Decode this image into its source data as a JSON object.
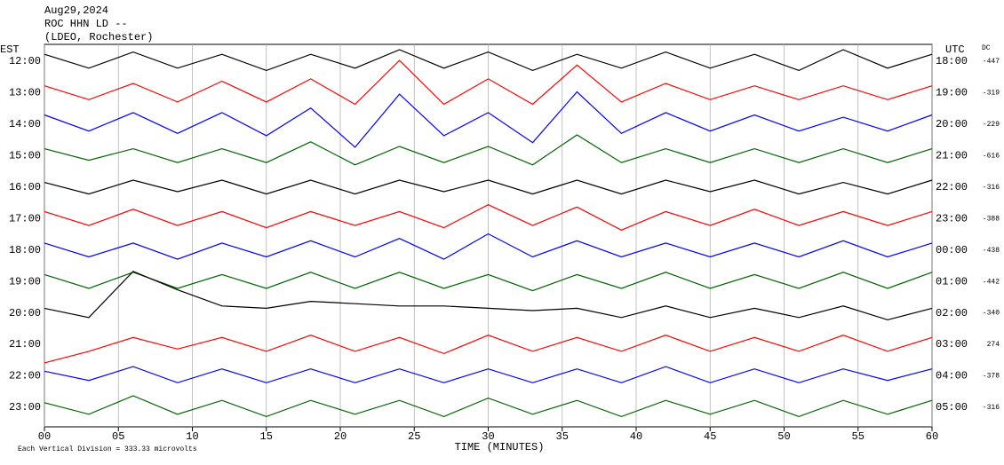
{
  "chart_data": {
    "type": "helicorder",
    "title_lines": [
      "Aug29,2024",
      "ROC HHN LD --",
      "(LDEO, Rochester)"
    ],
    "left_axis_label": "EST",
    "right_axis_label": "UTC",
    "dc_label": "DC",
    "x_label": "TIME (MINUTES)",
    "footnote": "Each Vertical Division = 333.33 microvolts",
    "xlim": [
      0,
      60
    ],
    "xticks": [
      {
        "value": 0,
        "label": "00"
      },
      {
        "value": 5,
        "label": "05"
      },
      10,
      15,
      20,
      25,
      30,
      35,
      40,
      45,
      50,
      55,
      60
    ],
    "grid": true,
    "x": [
      0,
      3,
      6,
      9,
      12,
      15,
      18,
      21,
      24,
      27,
      30,
      33,
      36,
      39,
      42,
      45,
      48,
      51,
      54,
      57,
      60
    ],
    "series": [
      {
        "est": "12:00",
        "utc": "18:00",
        "dc": -447,
        "color": "#000000",
        "values": [
          0.3,
          -0.3,
          0.4,
          -0.3,
          0.3,
          -0.4,
          0.3,
          -0.3,
          0.5,
          -0.3,
          0.4,
          -0.4,
          0.3,
          -0.3,
          0.4,
          -0.3,
          0.3,
          -0.4,
          0.5,
          -0.3,
          0.3
        ]
      },
      {
        "est": "13:00",
        "utc": "19:00",
        "dc": -319,
        "color": "#ff0000",
        "values": [
          0.3,
          -0.3,
          0.4,
          -0.4,
          0.5,
          -0.4,
          0.6,
          -0.5,
          1.4,
          -0.5,
          0.6,
          -0.5,
          1.2,
          -0.4,
          0.4,
          -0.3,
          0.3,
          -0.3,
          0.3,
          -0.3,
          0.3
        ]
      },
      {
        "est": "14:00",
        "utc": "20:00",
        "dc": -229,
        "color": "#0000ff",
        "values": [
          0.4,
          -0.3,
          0.5,
          -0.4,
          0.5,
          -0.5,
          0.7,
          -1.0,
          1.3,
          -0.5,
          0.5,
          -0.8,
          1.4,
          -0.4,
          0.5,
          -0.3,
          0.4,
          -0.3,
          0.3,
          -0.3,
          0.4
        ]
      },
      {
        "est": "15:00",
        "utc": "21:00",
        "dc": -616,
        "color": "#006400",
        "values": [
          0.3,
          -0.2,
          0.3,
          -0.3,
          0.3,
          -0.3,
          0.6,
          -0.4,
          0.4,
          -0.3,
          0.4,
          -0.4,
          0.9,
          -0.3,
          0.3,
          -0.3,
          0.3,
          -0.3,
          0.3,
          -0.3,
          0.3
        ]
      },
      {
        "est": "16:00",
        "utc": "22:00",
        "dc": -316,
        "color": "#000000",
        "values": [
          0.2,
          -0.3,
          0.3,
          -0.2,
          0.3,
          -0.3,
          0.3,
          -0.3,
          0.3,
          -0.2,
          0.3,
          -0.3,
          0.3,
          -0.3,
          0.3,
          -0.2,
          0.3,
          -0.3,
          0.2,
          -0.3,
          0.3
        ]
      },
      {
        "est": "17:00",
        "utc": "23:00",
        "dc": -388,
        "color": "#ff0000",
        "values": [
          0.3,
          -0.3,
          0.4,
          -0.3,
          0.3,
          -0.4,
          0.3,
          -0.3,
          0.3,
          -0.4,
          0.6,
          -0.3,
          0.5,
          -0.5,
          0.3,
          -0.3,
          0.4,
          -0.3,
          0.3,
          -0.3,
          0.3
        ]
      },
      {
        "est": "18:00",
        "utc": "00:00",
        "dc": -438,
        "color": "#0000ff",
        "values": [
          0.3,
          -0.3,
          0.3,
          -0.4,
          0.3,
          -0.3,
          0.4,
          -0.3,
          0.5,
          -0.4,
          0.7,
          -0.3,
          0.4,
          -0.3,
          0.3,
          -0.3,
          0.3,
          -0.3,
          0.4,
          -0.3,
          0.3
        ]
      },
      {
        "est": "19:00",
        "utc": "01:00",
        "dc": -442,
        "color": "#006400",
        "values": [
          0.3,
          -0.3,
          0.4,
          -0.3,
          0.3,
          -0.3,
          0.4,
          -0.3,
          0.4,
          -0.3,
          0.3,
          -0.4,
          0.3,
          -0.3,
          0.4,
          -0.3,
          0.3,
          -0.3,
          0.4,
          -0.3,
          0.4
        ]
      },
      {
        "est": "20:00",
        "utc": "02:00",
        "dc": -340,
        "color": "#000000",
        "values": [
          0.2,
          -0.2,
          1.8,
          1.0,
          0.3,
          0.2,
          0.5,
          0.4,
          0.3,
          0.3,
          0.2,
          0.1,
          0.2,
          -0.2,
          0.3,
          -0.2,
          0.2,
          -0.2,
          0.3,
          -0.3,
          0.2
        ]
      },
      {
        "est": "21:00",
        "utc": "03:00",
        "dc": 274,
        "color": "#ff0000",
        "values": [
          -0.8,
          -0.3,
          0.3,
          -0.2,
          0.3,
          -0.3,
          0.4,
          -0.3,
          0.3,
          -0.4,
          0.4,
          -0.3,
          0.3,
          -0.3,
          0.4,
          -0.3,
          0.3,
          -0.3,
          0.4,
          -0.3,
          0.3
        ]
      },
      {
        "est": "22:00",
        "utc": "04:00",
        "dc": -378,
        "color": "#0000ff",
        "values": [
          0.2,
          -0.2,
          0.4,
          -0.3,
          0.3,
          -0.3,
          0.3,
          -0.3,
          0.3,
          -0.3,
          0.3,
          -0.3,
          0.3,
          -0.3,
          0.4,
          -0.3,
          0.3,
          -0.3,
          0.3,
          -0.2,
          0.3
        ]
      },
      {
        "est": "23:00",
        "utc": "05:00",
        "dc": -316,
        "color": "#006400",
        "values": [
          0.2,
          -0.3,
          0.5,
          -0.3,
          0.3,
          -0.4,
          0.3,
          -0.3,
          0.3,
          -0.4,
          0.4,
          -0.3,
          0.3,
          -0.4,
          0.3,
          -0.3,
          0.3,
          -0.4,
          0.3,
          -0.3,
          0.3
        ]
      }
    ]
  }
}
